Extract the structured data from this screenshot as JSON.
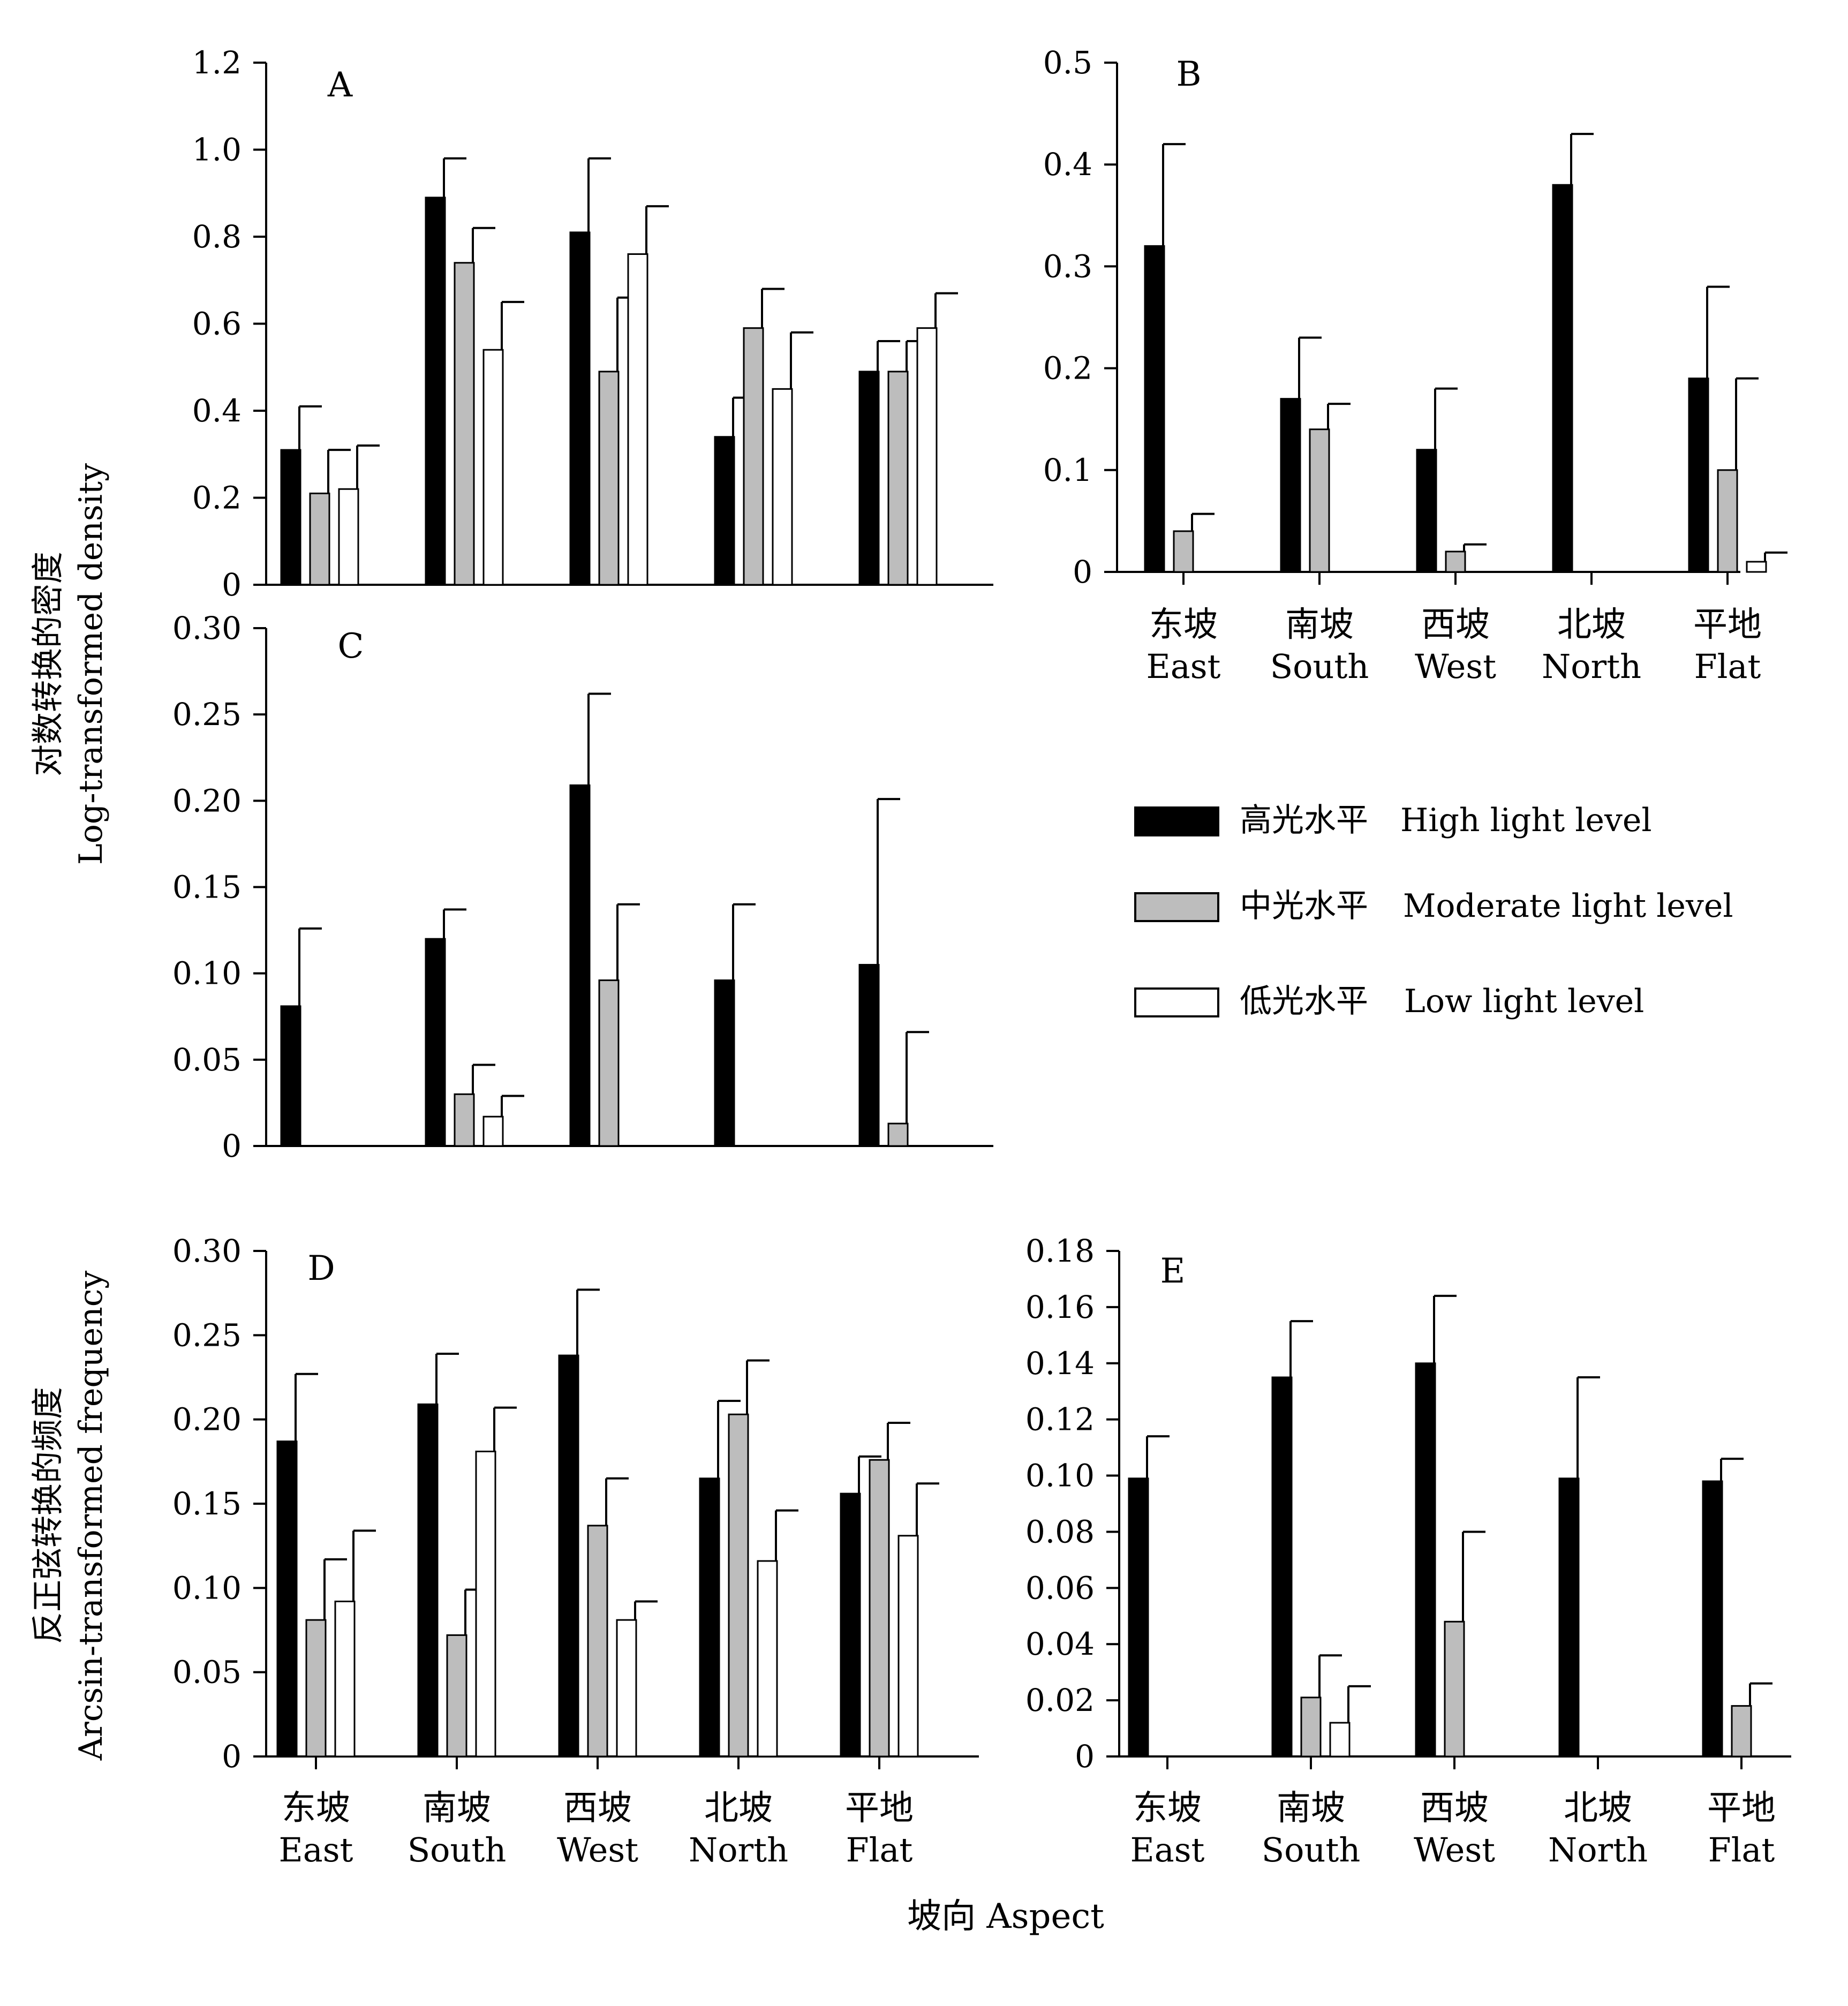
{
  "colors": {
    "high": "#000000",
    "moderate": "#bdbdbd",
    "low": "#ffffff",
    "axis": "#000000"
  },
  "legend": [
    {
      "key": "high",
      "cn": "高光水平",
      "en": "High light level"
    },
    {
      "key": "moderate",
      "cn": "中光水平",
      "en": "Moderate light level"
    },
    {
      "key": "low",
      "cn": "低光水平",
      "en": "Low light level"
    }
  ],
  "y_title_top": {
    "line1": "对数转换的密度",
    "line2": "Log-transformed density"
  },
  "y_title_bottom": {
    "line1": "反正弦转换的频度",
    "line2": "Arcsin-transformed frequency"
  },
  "x_title": "坡向 Aspect",
  "categories": [
    {
      "cn": "东坡",
      "en": "East"
    },
    {
      "cn": "南坡",
      "en": "South"
    },
    {
      "cn": "西坡",
      "en": "West"
    },
    {
      "cn": "北坡",
      "en": "North"
    },
    {
      "cn": "平地",
      "en": "Flat"
    }
  ],
  "chart_data": [
    {
      "type": "bar",
      "panel": "A",
      "ylim": [
        0,
        1.2
      ],
      "ticks": [
        "0",
        "0.2",
        "0.4",
        "0.6",
        "0.8",
        "1.0",
        "1.2"
      ],
      "series": [
        {
          "key": "high",
          "values": [
            0.31,
            0.89,
            0.81,
            0.34,
            0.49
          ],
          "errors": [
            0.1,
            0.09,
            0.17,
            0.09,
            0.07
          ]
        },
        {
          "key": "moderate",
          "values": [
            0.21,
            0.74,
            0.49,
            0.59,
            0.49
          ],
          "errors": [
            0.1,
            0.08,
            0.17,
            0.09,
            0.07
          ]
        },
        {
          "key": "low",
          "values": [
            0.22,
            0.54,
            0.76,
            0.45,
            0.59
          ],
          "errors": [
            0.1,
            0.11,
            0.11,
            0.13,
            0.08
          ]
        }
      ]
    },
    {
      "type": "bar",
      "panel": "B",
      "ylim": [
        0,
        0.5
      ],
      "ticks": [
        "0",
        "0.1",
        "0.2",
        "0.3",
        "0.4",
        "0.5"
      ],
      "series": [
        {
          "key": "high",
          "values": [
            0.32,
            0.17,
            0.12,
            0.38,
            0.19
          ],
          "errors": [
            0.1,
            0.06,
            0.06,
            0.05,
            0.09
          ]
        },
        {
          "key": "moderate",
          "values": [
            0.04,
            0.14,
            0.02,
            0,
            0.1
          ],
          "errors": [
            0.017,
            0.025,
            0.007,
            0,
            0.09
          ]
        },
        {
          "key": "low",
          "values": [
            0,
            0,
            0,
            0,
            0.01
          ],
          "errors": [
            0,
            0,
            0,
            0,
            0.009
          ]
        }
      ]
    },
    {
      "type": "bar",
      "panel": "C",
      "ylim": [
        0,
        0.3
      ],
      "ticks": [
        "0",
        "0.05",
        "0.10",
        "0.15",
        "0.20",
        "0.25",
        "0.30"
      ],
      "series": [
        {
          "key": "high",
          "values": [
            0.081,
            0.12,
            0.209,
            0.096,
            0.105
          ],
          "errors": [
            0.045,
            0.017,
            0.053,
            0.044,
            0.096
          ]
        },
        {
          "key": "moderate",
          "values": [
            0,
            0.03,
            0.096,
            0,
            0.013
          ],
          "errors": [
            0,
            0.017,
            0.044,
            0,
            0.053
          ]
        },
        {
          "key": "low",
          "values": [
            0,
            0.017,
            0,
            0,
            0
          ],
          "errors": [
            0,
            0.012,
            0,
            0,
            0
          ]
        }
      ]
    },
    {
      "type": "bar",
      "panel": "D",
      "ylim": [
        0,
        0.3
      ],
      "ticks": [
        "0",
        "0.05",
        "0.10",
        "0.15",
        "0.20",
        "0.25",
        "0.30"
      ],
      "series": [
        {
          "key": "high",
          "values": [
            0.187,
            0.209,
            0.238,
            0.165,
            0.156
          ],
          "errors": [
            0.04,
            0.03,
            0.039,
            0.046,
            0.022
          ]
        },
        {
          "key": "moderate",
          "values": [
            0.081,
            0.072,
            0.137,
            0.203,
            0.176
          ],
          "errors": [
            0.036,
            0.027,
            0.028,
            0.032,
            0.022
          ]
        },
        {
          "key": "low",
          "values": [
            0.092,
            0.181,
            0.081,
            0.116,
            0.131
          ],
          "errors": [
            0.042,
            0.026,
            0.011,
            0.03,
            0.031
          ]
        }
      ]
    },
    {
      "type": "bar",
      "panel": "E",
      "ylim": [
        0,
        0.18
      ],
      "ticks": [
        "0",
        "0.02",
        "0.04",
        "0.06",
        "0.08",
        "0.10",
        "0.12",
        "0.14",
        "0.16",
        "0.18"
      ],
      "series": [
        {
          "key": "high",
          "values": [
            0.099,
            0.135,
            0.14,
            0.099,
            0.098
          ],
          "errors": [
            0.015,
            0.02,
            0.024,
            0.036,
            0.008
          ]
        },
        {
          "key": "moderate",
          "values": [
            0,
            0.021,
            0.048,
            0,
            0.018
          ],
          "errors": [
            0,
            0.015,
            0.032,
            0,
            0.008
          ]
        },
        {
          "key": "low",
          "values": [
            0,
            0.012,
            0,
            0,
            0
          ],
          "errors": [
            0,
            0.013,
            0,
            0,
            0
          ]
        }
      ]
    }
  ]
}
